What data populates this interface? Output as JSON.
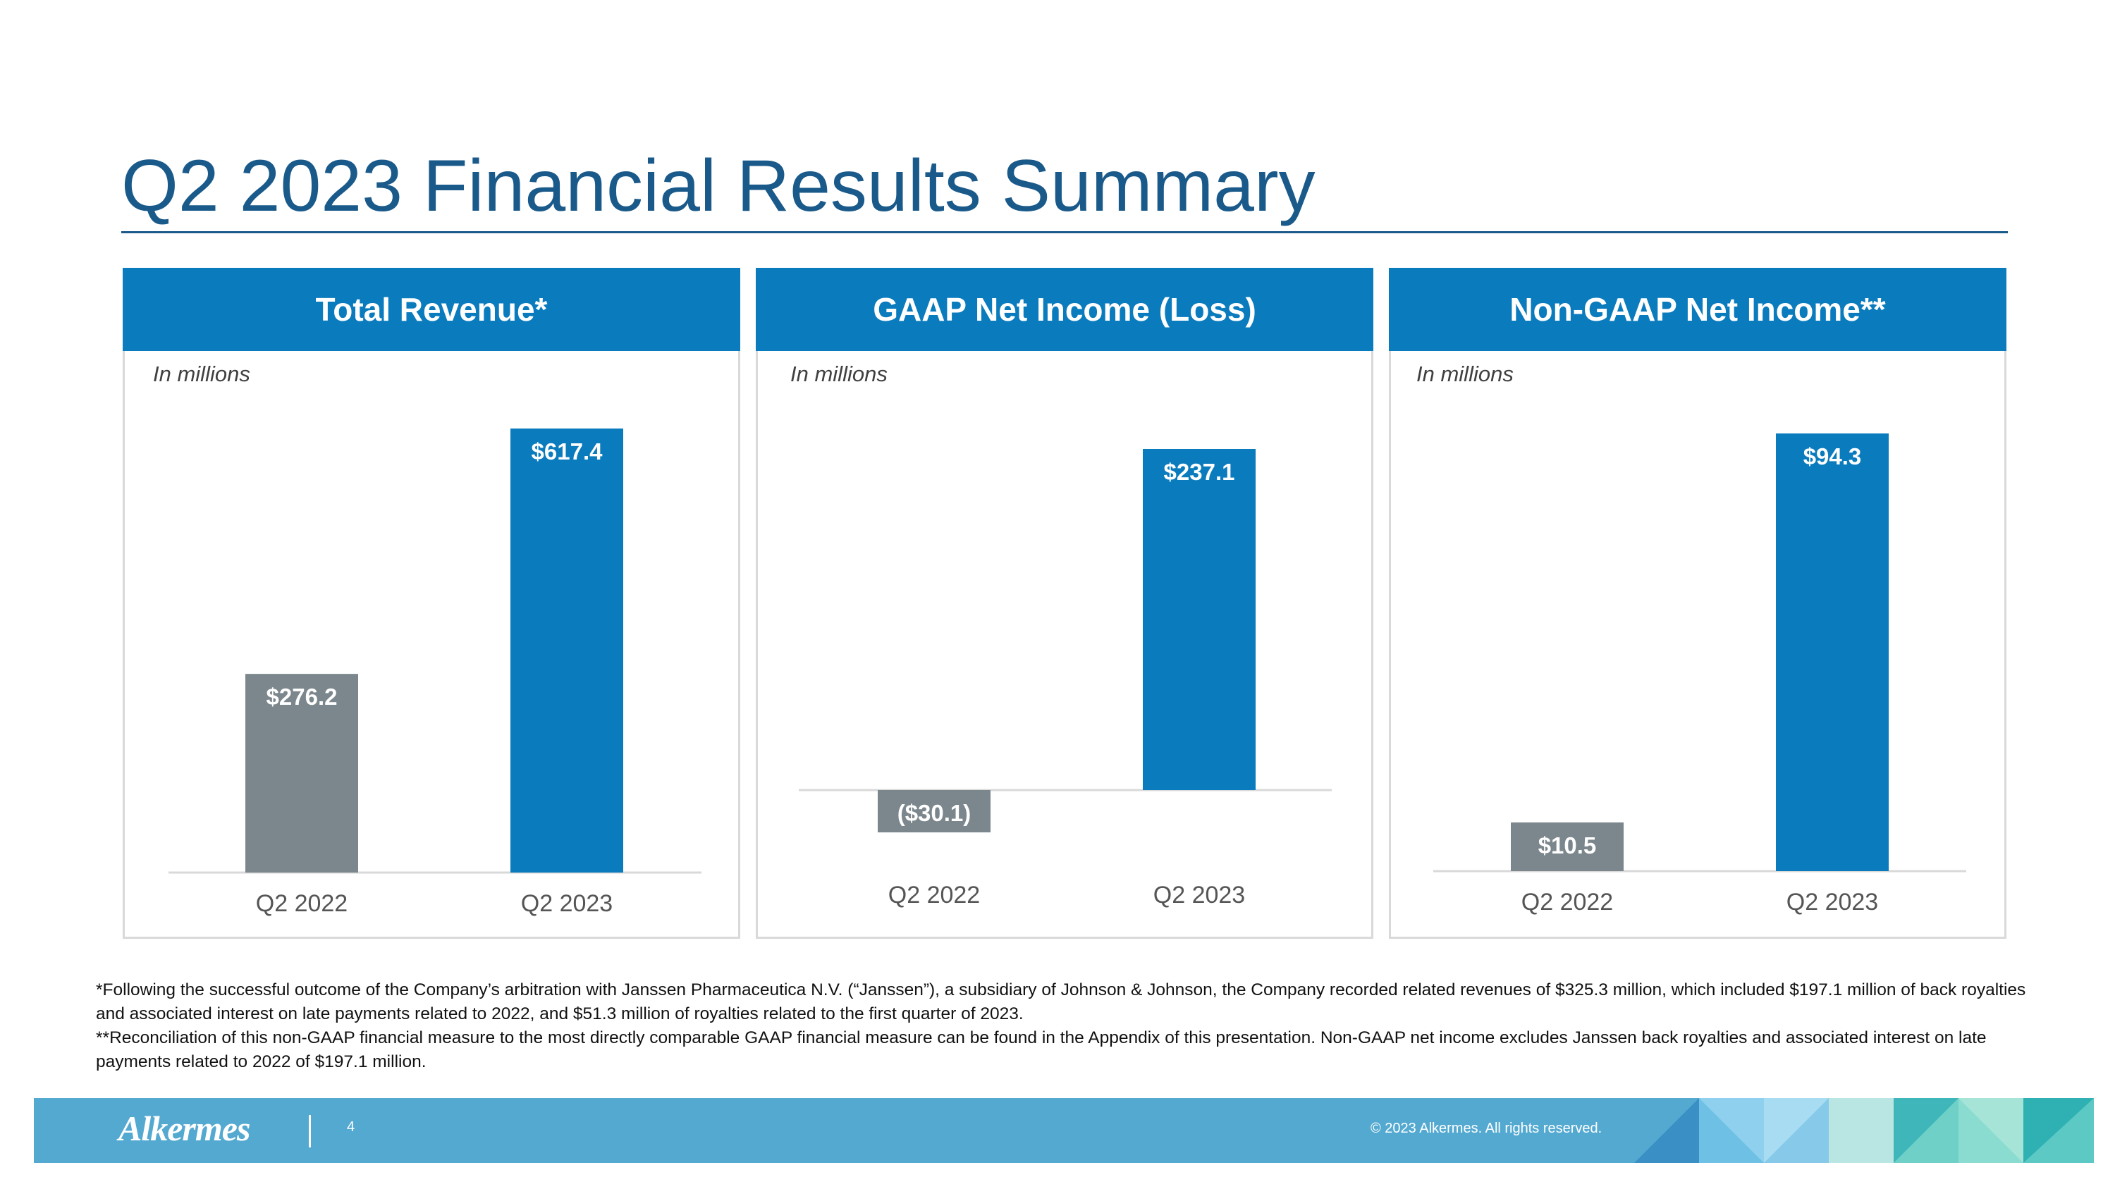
{
  "slide": {
    "title": "Q2 2023 Financial Results Summary",
    "accent_color": "#0a7bbd",
    "prior_color": "#7b878c",
    "title_color": "#1a5a8a"
  },
  "chart_data": [
    {
      "type": "bar",
      "title": "Total Revenue*",
      "units_label": "In millions",
      "categories": [
        "Q2 2022",
        "Q2 2023"
      ],
      "values": [
        276.2,
        617.4
      ],
      "value_labels": [
        "$276.2",
        "$617.4"
      ],
      "ylim": [
        0,
        617.4
      ]
    },
    {
      "type": "bar",
      "title": "GAAP Net Income (Loss)",
      "units_label": "In millions",
      "categories": [
        "Q2 2022",
        "Q2 2023"
      ],
      "values": [
        -30.1,
        237.1
      ],
      "value_labels": [
        "($30.1)",
        "$237.1"
      ],
      "ylim": [
        -30.1,
        237.1
      ]
    },
    {
      "type": "bar",
      "title": "Non-GAAP Net Income**",
      "units_label": "In millions",
      "categories": [
        "Q2 2022",
        "Q2 2023"
      ],
      "values": [
        10.5,
        94.3
      ],
      "value_labels": [
        "$10.5",
        "$94.3"
      ],
      "ylim": [
        0,
        94.3
      ]
    }
  ],
  "footnotes": {
    "note1": "*Following the successful outcome of the Company’s arbitration with Janssen Pharmaceutica N.V. (“Janssen”), a subsidiary of Johnson & Johnson, the Company recorded related revenues of $325.3 million, which included $197.1 million of back royalties and associated interest on late payments related to 2022, and $51.3 million of royalties related to the first quarter of 2023.",
    "note2": "**Reconciliation of this non-GAAP financial measure to the most directly comparable GAAP financial measure can be found in the Appendix of this presentation. Non-GAAP net income excludes Janssen back royalties and associated interest on late payments related to 2022 of $197.1 million."
  },
  "footer": {
    "logo_text": "Alkermes",
    "page_number": "4",
    "copyright": "© 2023 Alkermes. All rights reserved."
  }
}
